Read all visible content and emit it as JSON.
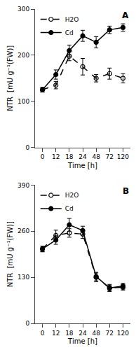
{
  "chart_data": [
    {
      "type": "line",
      "categories": [
        "0",
        "12",
        "18",
        "24",
        "48",
        "72",
        "120"
      ],
      "series": [
        {
          "name": "H2O",
          "color": "#000000",
          "marker": "open circle",
          "line_style": "dashed",
          "values": [
            125,
            135,
            198,
            175,
            150,
            160,
            150
          ],
          "errors": [
            5,
            8,
            10,
            18,
            8,
            12,
            10
          ]
        },
        {
          "name": "Cd",
          "color": "#000000",
          "marker": "circle",
          "line_style": "solid",
          "values": [
            125,
            158,
            210,
            242,
            228,
            255,
            260
          ],
          "errors": [
            5,
            10,
            12,
            12,
            12,
            8,
            8
          ]
        }
      ],
      "annotations": [
        "A"
      ],
      "xlabel": "Time [h]",
      "ylabel": "NTR  [mU g⁻¹(FW)]",
      "ylim": [
        0,
        300
      ],
      "yticks": [
        0,
        100,
        200,
        300
      ],
      "grid": false,
      "legend": "upper left"
    },
    {
      "type": "line",
      "categories": [
        "0",
        "12",
        "18",
        "24",
        "48",
        "72",
        "120"
      ],
      "series": [
        {
          "name": "H2O",
          "color": "#000000",
          "marker": "open circle",
          "line_style": "dashed",
          "values": [
            210,
            248,
            255,
            252,
            130,
            100,
            102
          ],
          "errors": [
            8,
            15,
            12,
            12,
            12,
            8,
            8
          ]
        },
        {
          "name": "Cd",
          "color": "#000000",
          "marker": "circle",
          "line_style": "solid",
          "values": [
            210,
            235,
            278,
            262,
            132,
            100,
            105
          ],
          "errors": [
            8,
            12,
            18,
            12,
            12,
            10,
            8
          ]
        }
      ],
      "annotations": [
        "B"
      ],
      "xlabel": "Time [h]",
      "ylabel": "NTR  [mU g⁻¹(FW)]",
      "ylim": [
        0,
        390
      ],
      "yticks": [
        0,
        130,
        260,
        390
      ],
      "grid": false,
      "legend": "upper left"
    }
  ]
}
